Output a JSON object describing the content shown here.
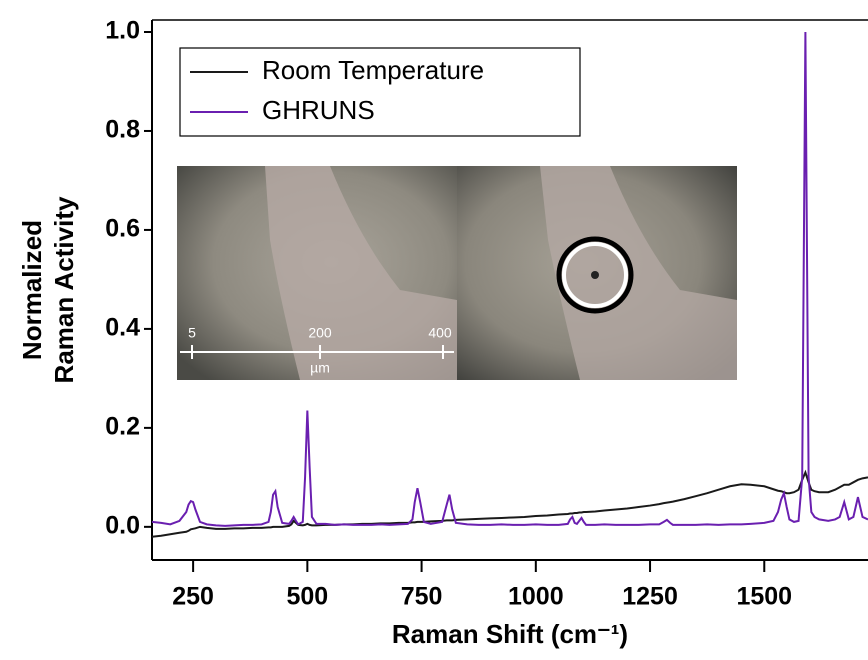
{
  "chart_data": {
    "type": "line",
    "xlabel": "Raman Shift (cm⁻¹)",
    "ylabel": [
      "Normalized",
      "Raman Activity"
    ],
    "xlim": [
      160,
      1727
    ],
    "ylim": [
      -0.067,
      1.0
    ],
    "xticks": [
      250,
      500,
      750,
      1000,
      1250,
      1500
    ],
    "yticks": [
      {
        "value": 0,
        "label": "0.0"
      },
      0.2,
      0.4,
      0.6,
      0.8,
      {
        "value": 1,
        "label": "1.0"
      }
    ],
    "legend": "upper left",
    "inset_scale": {
      "labels": [
        5,
        200,
        400
      ],
      "unit": "µm"
    },
    "x": [
      160,
      180,
      200,
      220,
      235,
      240,
      245,
      250,
      255,
      265,
      280,
      300,
      320,
      340,
      360,
      380,
      400,
      415,
      420,
      425,
      430,
      435,
      445,
      460,
      465,
      470,
      475,
      480,
      490,
      495,
      500,
      505,
      510,
      520,
      540,
      560,
      580,
      600,
      620,
      640,
      660,
      680,
      700,
      720,
      730,
      735,
      741,
      747,
      755,
      770,
      795,
      805,
      811,
      817,
      825,
      850,
      875,
      900,
      925,
      950,
      975,
      1000,
      1025,
      1050,
      1070,
      1075,
      1080,
      1085,
      1090,
      1095,
      1100,
      1105,
      1110,
      1130,
      1150,
      1175,
      1200,
      1225,
      1250,
      1270,
      1280,
      1287,
      1294,
      1300,
      1325,
      1350,
      1375,
      1400,
      1425,
      1450,
      1470,
      1500,
      1520,
      1530,
      1537,
      1543,
      1549,
      1555,
      1565,
      1575,
      1583,
      1590,
      1597,
      1603,
      1610,
      1620,
      1640,
      1655,
      1665,
      1675,
      1685,
      1695,
      1705,
      1715,
      1727
    ],
    "series": [
      {
        "name": "Room Temperature",
        "color": "#1a1a1a",
        "values": [
          -0.02,
          -0.018,
          -0.015,
          -0.012,
          -0.01,
          -0.008,
          -0.005,
          -0.004,
          -0.003,
          0.0,
          -0.002,
          -0.004,
          -0.004,
          -0.003,
          -0.003,
          -0.002,
          -0.002,
          -0.001,
          -0.001,
          0.0,
          0.0,
          0.0,
          0.0,
          0.002,
          0.005,
          0.012,
          0.008,
          0.004,
          0.003,
          0.004,
          0.006,
          0.004,
          0.003,
          0.003,
          0.004,
          0.004,
          0.005,
          0.005,
          0.006,
          0.006,
          0.007,
          0.007,
          0.008,
          0.008,
          0.009,
          0.009,
          0.01,
          0.01,
          0.01,
          0.011,
          0.012,
          0.013,
          0.013,
          0.013,
          0.014,
          0.015,
          0.016,
          0.017,
          0.018,
          0.019,
          0.02,
          0.022,
          0.023,
          0.025,
          0.026,
          0.027,
          0.027,
          0.028,
          0.028,
          0.029,
          0.029,
          0.03,
          0.03,
          0.031,
          0.033,
          0.035,
          0.037,
          0.04,
          0.043,
          0.046,
          0.048,
          0.049,
          0.05,
          0.051,
          0.056,
          0.062,
          0.068,
          0.075,
          0.082,
          0.086,
          0.085,
          0.082,
          0.076,
          0.073,
          0.072,
          0.07,
          0.068,
          0.068,
          0.07,
          0.075,
          0.095,
          0.11,
          0.09,
          0.075,
          0.072,
          0.07,
          0.07,
          0.075,
          0.08,
          0.085,
          0.085,
          0.09,
          0.095,
          0.098,
          0.1
        ]
      },
      {
        "name": "GHRUNS",
        "color": "#6a1fb0",
        "values": [
          0.01,
          0.008,
          0.005,
          0.012,
          0.03,
          0.045,
          0.052,
          0.05,
          0.035,
          0.01,
          0.005,
          0.003,
          0.002,
          0.003,
          0.004,
          0.004,
          0.005,
          0.01,
          0.03,
          0.065,
          0.072,
          0.04,
          0.008,
          0.006,
          0.012,
          0.02,
          0.012,
          0.005,
          0.01,
          0.1,
          0.235,
          0.12,
          0.02,
          0.006,
          0.006,
          0.004,
          0.005,
          0.004,
          0.004,
          0.004,
          0.005,
          0.004,
          0.005,
          0.006,
          0.015,
          0.05,
          0.078,
          0.05,
          0.01,
          0.006,
          0.01,
          0.045,
          0.065,
          0.035,
          0.008,
          0.005,
          0.004,
          0.004,
          0.005,
          0.004,
          0.004,
          0.005,
          0.004,
          0.004,
          0.006,
          0.015,
          0.02,
          0.008,
          0.006,
          0.012,
          0.018,
          0.01,
          0.004,
          0.004,
          0.005,
          0.004,
          0.004,
          0.004,
          0.005,
          0.005,
          0.01,
          0.014,
          0.008,
          0.004,
          0.004,
          0.004,
          0.005,
          0.004,
          0.005,
          0.005,
          0.006,
          0.008,
          0.012,
          0.03,
          0.055,
          0.068,
          0.04,
          0.015,
          0.01,
          0.012,
          0.1,
          1.0,
          0.1,
          0.03,
          0.02,
          0.015,
          0.012,
          0.015,
          0.02,
          0.05,
          0.015,
          0.02,
          0.06,
          0.02,
          0.015
        ]
      }
    ]
  }
}
